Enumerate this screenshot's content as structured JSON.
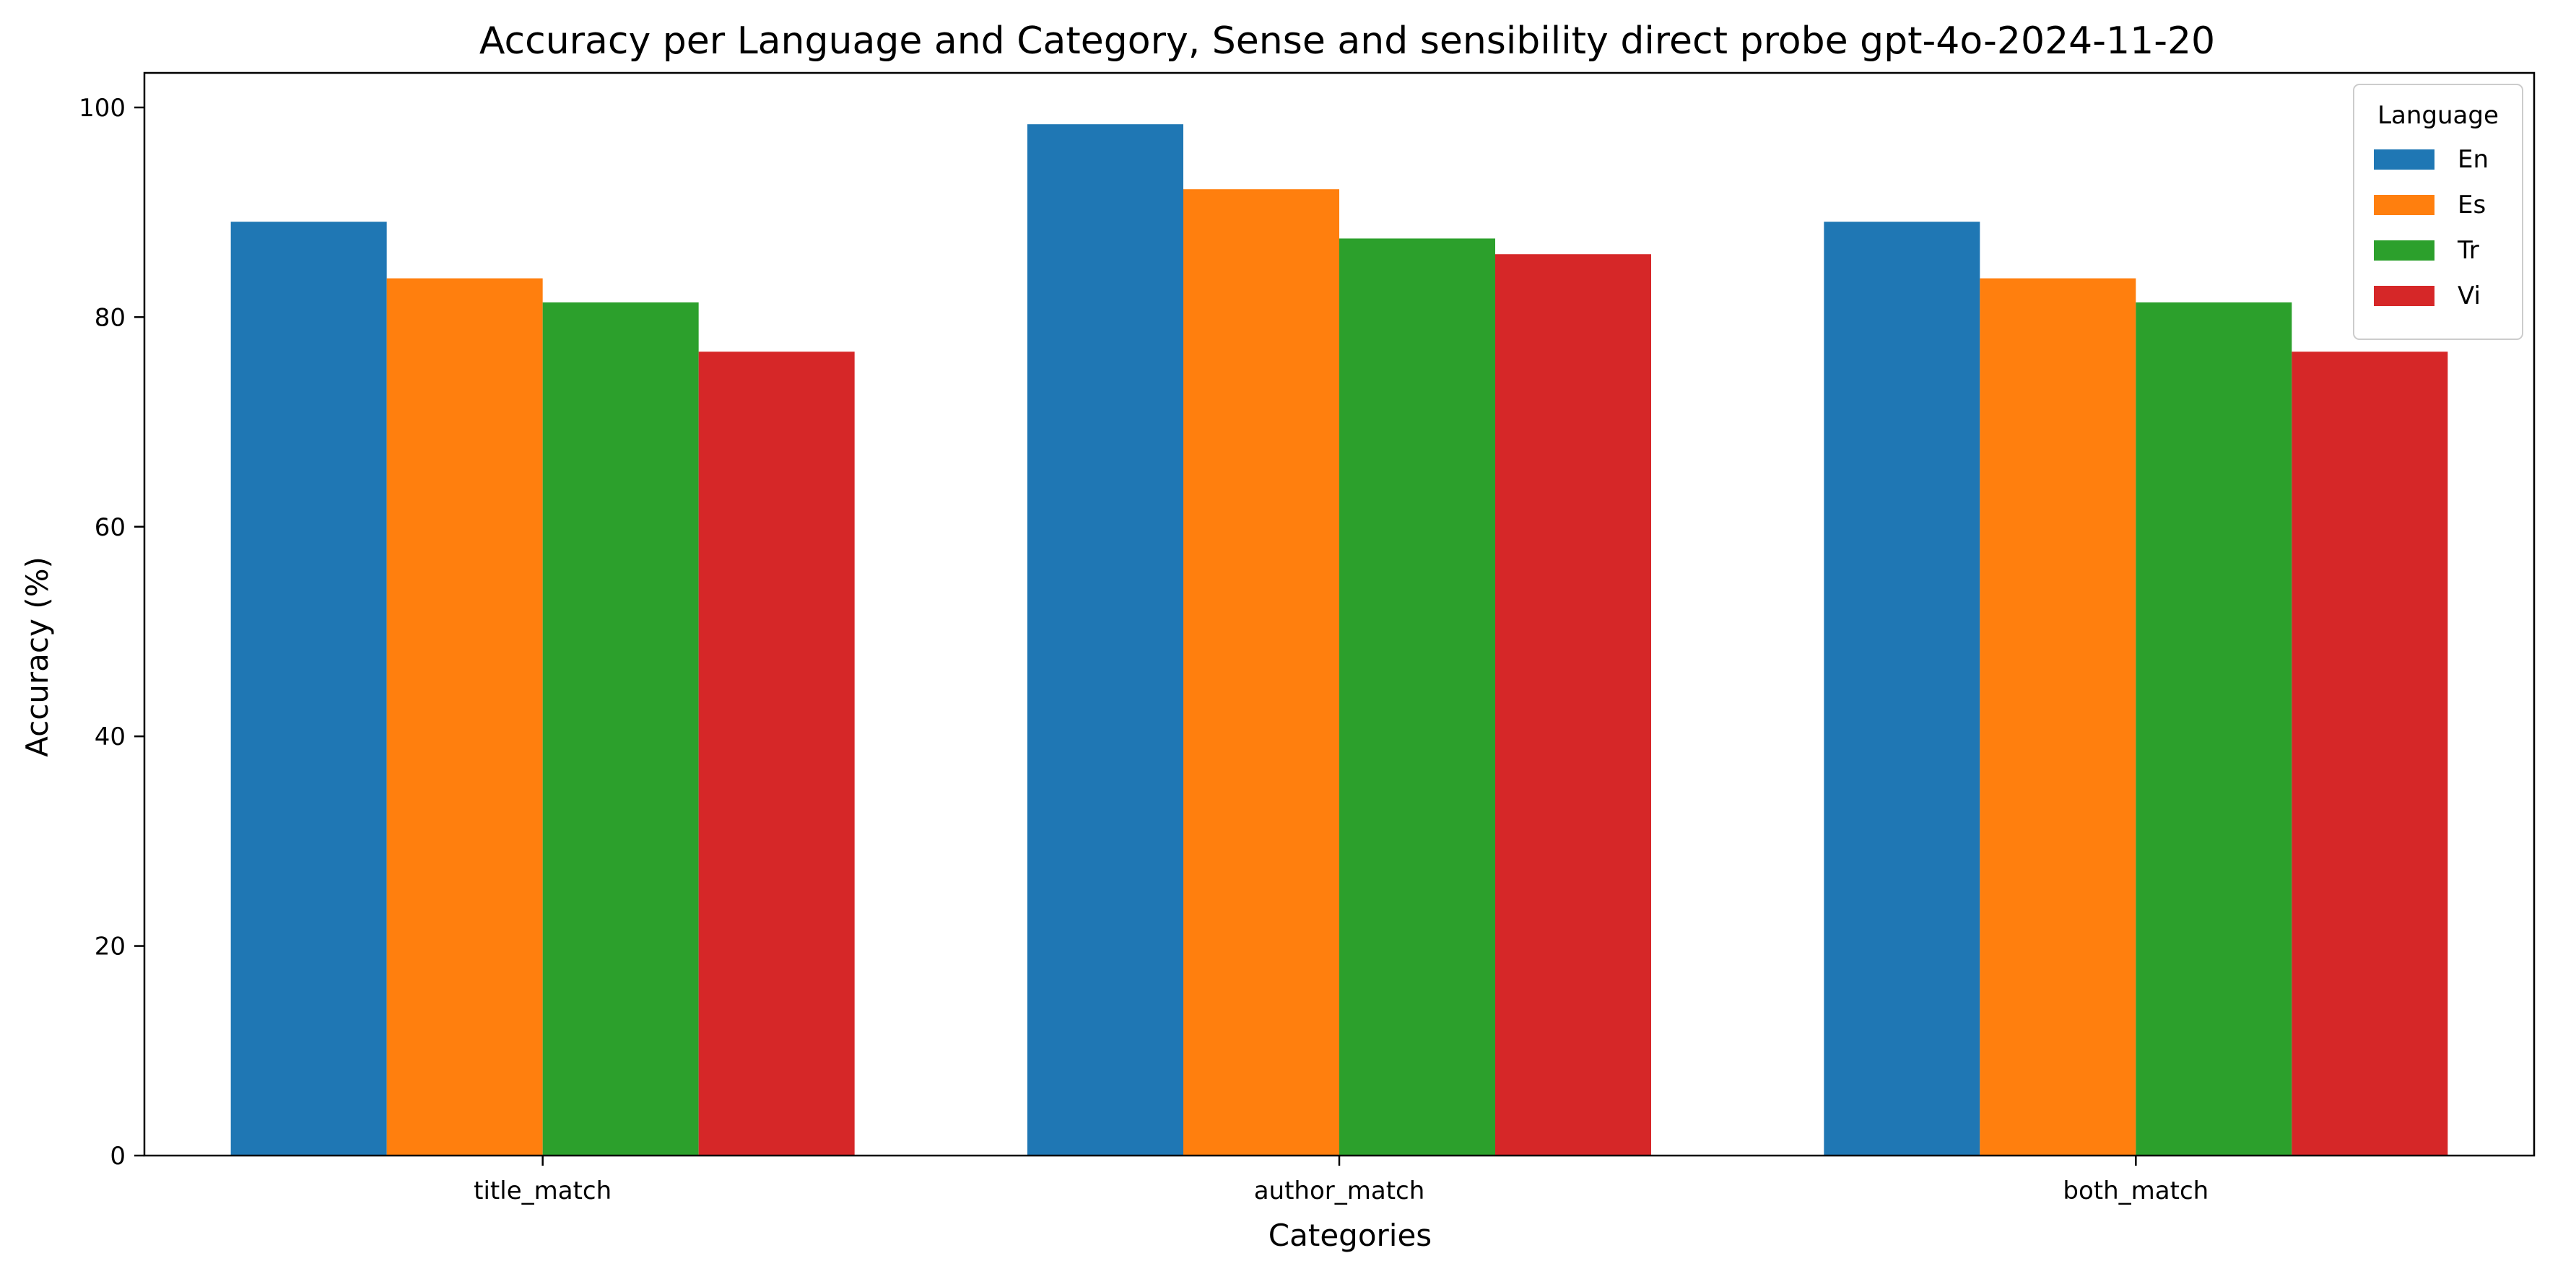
{
  "chart_data": {
    "type": "bar",
    "title": "Accuracy per Language and Category, Sense and sensibility direct probe gpt-4o-2024-11-20",
    "xlabel": "Categories",
    "ylabel": "Accuracy (%)",
    "categories": [
      "title_match",
      "author_match",
      "both_match"
    ],
    "series": [
      {
        "name": "En",
        "color": "#1f77b4",
        "values": [
          89.1,
          98.4,
          89.1
        ]
      },
      {
        "name": "Es",
        "color": "#ff7f0e",
        "values": [
          83.7,
          92.2,
          83.7
        ]
      },
      {
        "name": "Tr",
        "color": "#2ca02c",
        "values": [
          81.4,
          87.5,
          81.4
        ]
      },
      {
        "name": "Vi",
        "color": "#d62728",
        "values": [
          76.7,
          86.0,
          76.7
        ]
      }
    ],
    "ylim": [
      0,
      103.3
    ],
    "yticks": [
      0,
      20,
      40,
      60,
      80,
      100
    ],
    "grid": false,
    "legend": {
      "title": "Language",
      "placement": "top-right"
    }
  }
}
